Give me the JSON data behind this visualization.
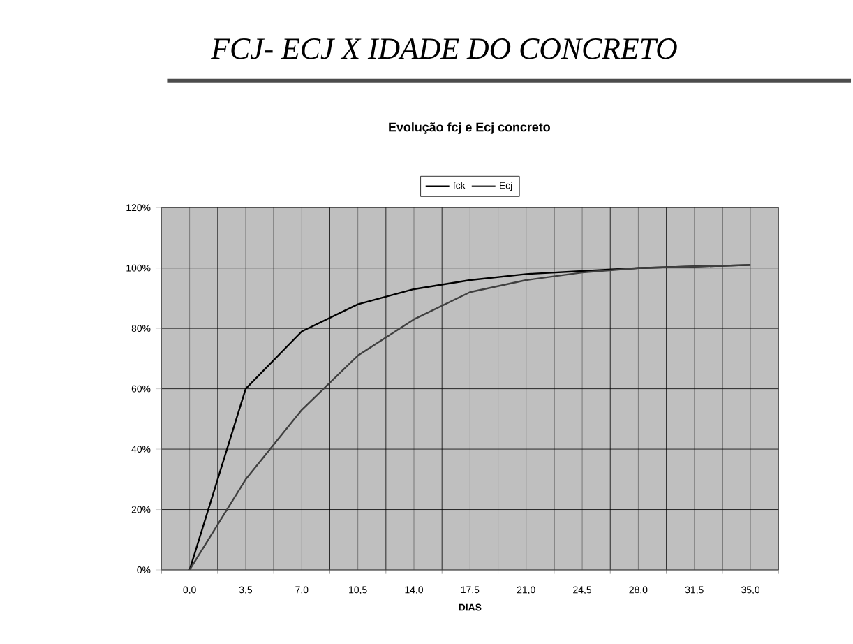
{
  "chart_data": {
    "type": "line",
    "title": "FCJ- ECJ X IDADE DO CONCRETO",
    "subtitle": "Evolução fcj e Ecj concreto",
    "xlabel": "DIAS",
    "categories": [
      "0,0",
      "3,5",
      "7,0",
      "10,5",
      "14,0",
      "17,5",
      "21,0",
      "24,5",
      "28,0",
      "31,5",
      "35,0"
    ],
    "series": [
      {
        "name": "fck",
        "color": "#000000",
        "values": [
          0,
          60,
          79,
          88,
          93,
          96,
          98,
          99,
          100,
          100.5,
          101
        ]
      },
      {
        "name": "Ecj",
        "color": "#404040",
        "values": [
          0,
          30,
          53,
          71,
          83,
          92,
          96,
          98.5,
          100,
          100.5,
          101
        ]
      }
    ],
    "ylim": [
      0,
      120
    ],
    "yticks": [
      {
        "value": 0,
        "label": "0%"
      },
      {
        "value": 20,
        "label": "20%"
      },
      {
        "value": 40,
        "label": "40%"
      },
      {
        "value": 60,
        "label": "60%"
      },
      {
        "value": 80,
        "label": "80%"
      },
      {
        "value": 100,
        "label": "100%"
      },
      {
        "value": 120,
        "label": "120%"
      }
    ],
    "grid": true,
    "legend": "top",
    "marker": "none",
    "line_style": "solid"
  }
}
